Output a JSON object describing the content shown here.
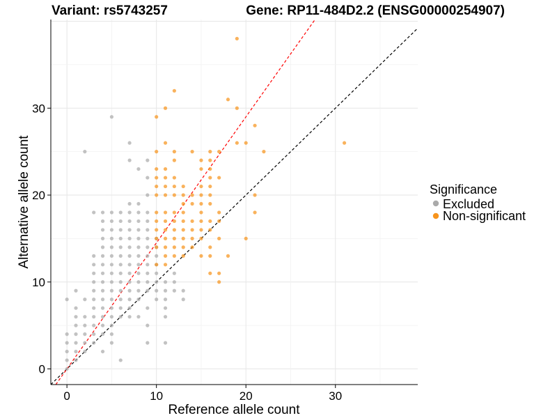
{
  "chart_data": {
    "type": "scatter",
    "title_left": "Variant: rs5743257",
    "title_right": "Gene: RP11-484D2.2 (ENSG00000254907)",
    "xlabel": "Reference allele count",
    "ylabel": "Alternative allele count",
    "xlim": [
      -1.8,
      39.2
    ],
    "ylim": [
      -1.8,
      40.2
    ],
    "x_ticks": [
      0,
      10,
      20,
      30
    ],
    "y_ticks": [
      0,
      10,
      20,
      30
    ],
    "grid": true,
    "reference_lines": [
      {
        "color": "#000000",
        "style": "dashed",
        "slope": 1.0,
        "intercept": 0
      },
      {
        "color": "#ff0000",
        "style": "dashed",
        "slope": 1.45,
        "intercept": 0
      }
    ],
    "legend": {
      "title": "Significance",
      "placement": "right",
      "entries": [
        {
          "label": "Excluded",
          "color": "#aaaaaa"
        },
        {
          "label": "Non-significant",
          "color": "#f7941d"
        }
      ]
    },
    "series": [
      {
        "name": "Excluded",
        "color": "#aaaaaa",
        "points": [
          [
            0,
            0
          ],
          [
            0,
            1
          ],
          [
            0,
            2
          ],
          [
            0,
            3
          ],
          [
            0,
            4
          ],
          [
            0,
            8
          ],
          [
            1,
            1
          ],
          [
            1,
            2
          ],
          [
            1,
            3
          ],
          [
            1,
            4
          ],
          [
            1,
            5
          ],
          [
            1,
            6
          ],
          [
            1,
            7
          ],
          [
            1,
            9
          ],
          [
            2,
            2
          ],
          [
            2,
            3
          ],
          [
            2,
            4
          ],
          [
            2,
            5
          ],
          [
            2,
            6
          ],
          [
            2,
            8
          ],
          [
            2,
            25
          ],
          [
            3,
            3
          ],
          [
            3,
            4
          ],
          [
            3,
            5
          ],
          [
            3,
            6
          ],
          [
            3,
            7
          ],
          [
            3,
            8
          ],
          [
            3,
            9
          ],
          [
            3,
            10
          ],
          [
            3,
            11
          ],
          [
            3,
            12
          ],
          [
            3,
            13
          ],
          [
            3,
            18
          ],
          [
            4,
            2
          ],
          [
            4,
            4
          ],
          [
            4,
            5
          ],
          [
            4,
            6
          ],
          [
            4,
            7
          ],
          [
            4,
            8
          ],
          [
            4,
            9
          ],
          [
            4,
            10
          ],
          [
            4,
            11
          ],
          [
            4,
            12
          ],
          [
            4,
            13
          ],
          [
            4,
            14
          ],
          [
            4,
            15
          ],
          [
            4,
            16
          ],
          [
            4,
            17
          ],
          [
            4,
            18
          ],
          [
            5,
            3
          ],
          [
            5,
            4
          ],
          [
            5,
            5
          ],
          [
            5,
            6
          ],
          [
            5,
            7
          ],
          [
            5,
            8
          ],
          [
            5,
            9
          ],
          [
            5,
            10
          ],
          [
            5,
            11
          ],
          [
            5,
            12
          ],
          [
            5,
            13
          ],
          [
            5,
            14
          ],
          [
            5,
            15
          ],
          [
            5,
            16
          ],
          [
            5,
            17
          ],
          [
            5,
            18
          ],
          [
            5,
            29
          ],
          [
            6,
            1
          ],
          [
            6,
            6
          ],
          [
            6,
            7
          ],
          [
            6,
            8
          ],
          [
            6,
            9
          ],
          [
            6,
            10
          ],
          [
            6,
            11
          ],
          [
            6,
            12
          ],
          [
            6,
            13
          ],
          [
            6,
            14
          ],
          [
            6,
            15
          ],
          [
            6,
            16
          ],
          [
            6,
            17
          ],
          [
            6,
            18
          ],
          [
            7,
            6
          ],
          [
            7,
            7
          ],
          [
            7,
            8
          ],
          [
            7,
            9
          ],
          [
            7,
            10
          ],
          [
            7,
            11
          ],
          [
            7,
            12
          ],
          [
            7,
            13
          ],
          [
            7,
            14
          ],
          [
            7,
            15
          ],
          [
            7,
            16
          ],
          [
            7,
            17
          ],
          [
            7,
            18
          ],
          [
            7,
            19
          ],
          [
            7,
            24
          ],
          [
            7,
            26
          ],
          [
            8,
            6
          ],
          [
            8,
            8
          ],
          [
            8,
            9
          ],
          [
            8,
            10
          ],
          [
            8,
            11
          ],
          [
            8,
            12
          ],
          [
            8,
            13
          ],
          [
            8,
            14
          ],
          [
            8,
            15
          ],
          [
            8,
            16
          ],
          [
            8,
            17
          ],
          [
            8,
            18
          ],
          [
            8,
            19
          ],
          [
            8,
            23
          ],
          [
            9,
            3
          ],
          [
            9,
            5
          ],
          [
            9,
            7
          ],
          [
            9,
            9
          ],
          [
            9,
            10
          ],
          [
            9,
            11
          ],
          [
            9,
            12
          ],
          [
            9,
            13
          ],
          [
            9,
            14
          ],
          [
            9,
            15
          ],
          [
            9,
            16
          ],
          [
            9,
            17
          ],
          [
            9,
            18
          ],
          [
            9,
            20
          ],
          [
            9,
            22
          ],
          [
            9,
            24
          ],
          [
            10,
            8
          ],
          [
            10,
            9
          ],
          [
            10,
            10
          ],
          [
            10,
            11
          ],
          [
            10,
            12
          ],
          [
            10,
            13
          ],
          [
            10,
            14
          ],
          [
            10,
            15
          ],
          [
            11,
            3
          ],
          [
            11,
            6
          ],
          [
            11,
            7
          ],
          [
            11,
            8
          ],
          [
            11,
            9
          ],
          [
            11,
            10
          ],
          [
            12,
            9
          ],
          [
            12,
            10
          ],
          [
            12,
            11
          ],
          [
            13,
            8
          ],
          [
            13,
            9
          ]
        ]
      },
      {
        "name": "Non-significant",
        "color": "#f7941d",
        "points": [
          [
            10,
            12
          ],
          [
            10,
            14
          ],
          [
            10,
            15
          ],
          [
            10,
            16
          ],
          [
            10,
            17
          ],
          [
            10,
            18
          ],
          [
            10,
            20
          ],
          [
            10,
            21
          ],
          [
            10,
            22
          ],
          [
            10,
            23
          ],
          [
            10,
            25
          ],
          [
            10,
            29
          ],
          [
            11,
            12
          ],
          [
            11,
            13
          ],
          [
            11,
            14
          ],
          [
            11,
            15
          ],
          [
            11,
            16
          ],
          [
            11,
            17
          ],
          [
            11,
            18
          ],
          [
            11,
            20
          ],
          [
            11,
            21
          ],
          [
            11,
            22
          ],
          [
            11,
            23
          ],
          [
            11,
            26
          ],
          [
            11,
            30
          ],
          [
            12,
            13
          ],
          [
            12,
            14
          ],
          [
            12,
            15
          ],
          [
            12,
            16
          ],
          [
            12,
            17
          ],
          [
            12,
            18
          ],
          [
            12,
            20
          ],
          [
            12,
            21
          ],
          [
            12,
            22
          ],
          [
            12,
            24
          ],
          [
            12,
            25
          ],
          [
            12,
            32
          ],
          [
            13,
            13
          ],
          [
            13,
            14
          ],
          [
            13,
            15
          ],
          [
            13,
            16
          ],
          [
            13,
            17
          ],
          [
            13,
            18
          ],
          [
            13,
            19
          ],
          [
            13,
            20
          ],
          [
            13,
            21
          ],
          [
            14,
            14
          ],
          [
            14,
            15
          ],
          [
            14,
            16
          ],
          [
            14,
            17
          ],
          [
            14,
            19
          ],
          [
            14,
            20
          ],
          [
            14,
            25
          ],
          [
            15,
            13
          ],
          [
            15,
            15
          ],
          [
            15,
            16
          ],
          [
            15,
            17
          ],
          [
            15,
            18
          ],
          [
            15,
            19
          ],
          [
            15,
            20
          ],
          [
            15,
            21
          ],
          [
            15,
            23
          ],
          [
            15,
            24
          ],
          [
            16,
            11
          ],
          [
            16,
            13
          ],
          [
            16,
            14
          ],
          [
            16,
            16
          ],
          [
            16,
            17
          ],
          [
            16,
            19
          ],
          [
            16,
            20
          ],
          [
            16,
            21
          ],
          [
            16,
            22
          ],
          [
            16,
            23
          ],
          [
            16,
            24
          ],
          [
            16,
            25
          ],
          [
            17,
            10
          ],
          [
            17,
            11
          ],
          [
            17,
            15
          ],
          [
            17,
            17
          ],
          [
            17,
            18
          ],
          [
            17,
            22
          ],
          [
            17,
            25
          ],
          [
            18,
            13
          ],
          [
            18,
            31
          ],
          [
            19,
            26
          ],
          [
            19,
            30
          ],
          [
            19,
            38
          ],
          [
            20,
            15
          ],
          [
            20,
            26
          ],
          [
            21,
            18
          ],
          [
            21,
            20
          ],
          [
            21,
            28
          ],
          [
            22,
            25
          ],
          [
            31,
            26
          ]
        ]
      }
    ]
  }
}
